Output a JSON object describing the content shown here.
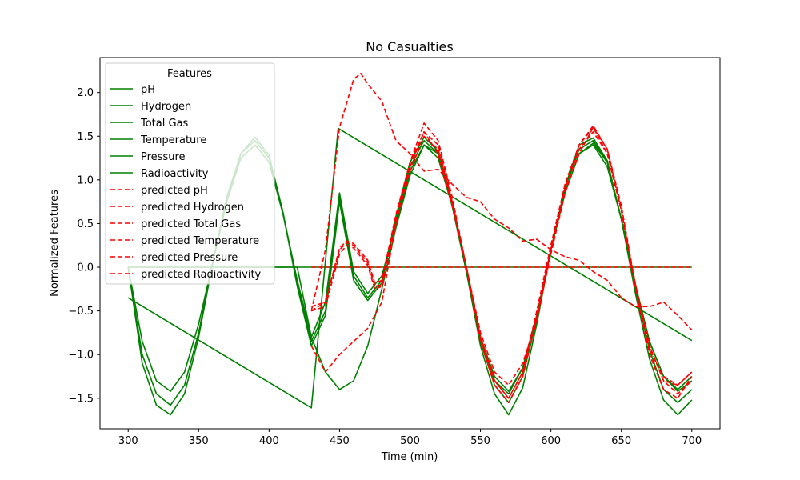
{
  "chart_data": {
    "type": "line",
    "title": "No Casualties",
    "xlabel": "Time (min)",
    "ylabel": "Normalized Features",
    "xlim": [
      280,
      720
    ],
    "ylim": [
      -1.85,
      2.4
    ],
    "xticks": [
      300,
      350,
      400,
      450,
      500,
      550,
      600,
      650,
      700
    ],
    "yticks": [
      -1.5,
      -1.0,
      -0.5,
      0.0,
      0.5,
      1.0,
      1.5,
      2.0
    ],
    "ytick_labels": [
      "−1.5",
      "−1.0",
      "−0.5",
      "0.0",
      "0.5",
      "1.0",
      "1.5",
      "2.0"
    ],
    "grid": false,
    "legend": {
      "title": "Features",
      "placement": "upper-left",
      "entries": [
        {
          "name": "pH",
          "color": "#008000",
          "style": "solid"
        },
        {
          "name": "Hydrogen",
          "color": "#008000",
          "style": "solid"
        },
        {
          "name": "Total Gas",
          "color": "#008000",
          "style": "solid"
        },
        {
          "name": "Temperature",
          "color": "#008000",
          "style": "solid"
        },
        {
          "name": "Pressure",
          "color": "#008000",
          "style": "solid"
        },
        {
          "name": "Radioactivity",
          "color": "#008000",
          "style": "solid"
        },
        {
          "name": "predicted pH",
          "color": "#ff0000",
          "style": "dashed"
        },
        {
          "name": "predicted Hydrogen",
          "color": "#ff0000",
          "style": "dashed"
        },
        {
          "name": "predicted Total Gas",
          "color": "#ff0000",
          "style": "dashed"
        },
        {
          "name": "predicted Temperature",
          "color": "#ff0000",
          "style": "dashed"
        },
        {
          "name": "predicted Pressure",
          "color": "#ff0000",
          "style": "dashed"
        },
        {
          "name": "predicted Radioactivity",
          "color": "#ff0000",
          "style": "dashed"
        }
      ]
    },
    "series": [
      {
        "name": "pH",
        "color": "#008000",
        "style": "solid",
        "x": [
          300,
          310,
          320,
          330,
          340,
          350,
          360,
          370,
          380,
          390,
          400,
          410,
          420,
          430,
          440,
          450,
          460,
          470,
          480,
          490,
          500,
          510,
          520,
          530,
          540,
          550,
          560,
          570,
          580,
          590,
          600,
          610,
          620,
          630,
          640,
          650,
          660,
          670,
          680,
          690,
          700
        ],
        "y": [
          0.0,
          -0.85,
          -1.3,
          -1.42,
          -1.2,
          -0.65,
          0.05,
          0.75,
          1.25,
          1.4,
          1.2,
          0.6,
          -0.15,
          -0.8,
          -0.4,
          0.85,
          -0.05,
          -0.3,
          -0.1,
          0.5,
          1.1,
          1.4,
          1.25,
          0.7,
          -0.05,
          -0.8,
          -1.25,
          -1.42,
          -1.15,
          -0.55,
          0.2,
          0.85,
          1.3,
          1.4,
          1.15,
          0.55,
          -0.2,
          -0.85,
          -1.25,
          -1.4,
          -1.25
        ]
      },
      {
        "name": "Hydrogen",
        "color": "#008000",
        "style": "solid",
        "x": [
          300,
          310,
          320,
          330,
          340,
          350,
          360,
          370,
          380,
          390,
          400,
          410,
          420,
          430,
          440,
          450,
          460,
          470,
          480,
          490,
          500,
          510,
          520,
          530,
          540,
          550,
          560,
          570,
          580,
          590,
          600,
          610,
          620,
          630,
          640,
          650,
          660,
          670,
          680,
          690,
          700
        ],
        "y": [
          0.0,
          -1.0,
          -1.45,
          -1.58,
          -1.35,
          -0.75,
          0.05,
          0.8,
          1.3,
          1.45,
          1.25,
          0.6,
          -0.2,
          -0.85,
          -0.5,
          0.8,
          -0.1,
          -0.35,
          -0.15,
          0.55,
          1.15,
          1.45,
          1.3,
          0.7,
          -0.05,
          -0.85,
          -1.35,
          -1.55,
          -1.25,
          -0.6,
          0.2,
          0.9,
          1.35,
          1.45,
          1.2,
          0.55,
          -0.25,
          -0.95,
          -1.4,
          -1.55,
          -1.4
        ]
      },
      {
        "name": "Total Gas",
        "color": "#008000",
        "style": "solid",
        "x": [
          300,
          310,
          320,
          330,
          340,
          350,
          360,
          370,
          380,
          390,
          400,
          410,
          420,
          430,
          440,
          450,
          460,
          470,
          480,
          490,
          500,
          510,
          520,
          530,
          540,
          550,
          560,
          570,
          580,
          590,
          600,
          610,
          620,
          630,
          640,
          650,
          660,
          670,
          680,
          690,
          700
        ],
        "y": [
          0.0,
          -1.1,
          -1.58,
          -1.69,
          -1.45,
          -0.8,
          0.05,
          0.8,
          1.3,
          1.49,
          1.28,
          0.62,
          -0.22,
          -0.9,
          -0.55,
          0.75,
          -0.15,
          -0.38,
          -0.18,
          0.58,
          1.2,
          1.49,
          1.33,
          0.72,
          -0.05,
          -0.9,
          -1.45,
          -1.69,
          -1.38,
          -0.65,
          0.2,
          0.92,
          1.4,
          1.48,
          1.22,
          0.55,
          -0.3,
          -1.05,
          -1.52,
          -1.69,
          -1.52
        ]
      },
      {
        "name": "Temperature",
        "color": "#008000",
        "style": "solid",
        "x": [
          300,
          430,
          449,
          700
        ],
        "y": [
          -0.35,
          -1.61,
          1.59,
          -0.84
        ]
      },
      {
        "name": "Pressure",
        "color": "#008000",
        "style": "solid",
        "x": [
          300,
          420,
          430,
          440,
          450,
          460,
          470,
          480,
          490,
          500,
          510,
          520,
          530,
          540,
          550,
          560,
          570,
          580,
          590,
          600,
          610,
          620,
          630,
          640,
          650,
          660,
          670,
          680,
          690,
          700
        ],
        "y": [
          0.0,
          0.0,
          -0.8,
          -1.2,
          -1.4,
          -1.3,
          -0.9,
          -0.25,
          0.45,
          1.05,
          1.4,
          1.3,
          0.7,
          0.0,
          -0.8,
          -1.3,
          -1.45,
          -1.15,
          -0.55,
          0.2,
          0.85,
          1.3,
          1.42,
          1.2,
          0.55,
          -0.2,
          -0.85,
          -1.25,
          -1.42,
          -1.3
        ]
      },
      {
        "name": "Radioactivity",
        "color": "#008000",
        "style": "solid",
        "x": [
          300,
          700
        ],
        "y": [
          0.0,
          0.0
        ]
      },
      {
        "name": "predicted pH",
        "color": "#ff0000",
        "style": "dashed",
        "x": [
          430,
          440,
          450,
          455,
          460,
          470,
          475,
          480,
          490,
          500,
          510,
          520,
          530,
          540,
          550,
          560,
          570,
          580,
          590,
          600,
          610,
          620,
          630,
          640,
          650,
          660,
          670,
          680,
          690,
          700
        ],
        "y": [
          -0.5,
          -0.4,
          0.2,
          0.28,
          0.25,
          0.05,
          -0.22,
          -0.2,
          0.5,
          1.1,
          1.5,
          1.35,
          0.75,
          0.0,
          -0.8,
          -1.3,
          -1.5,
          -1.2,
          -0.55,
          0.2,
          0.9,
          1.35,
          1.55,
          1.3,
          0.65,
          -0.2,
          -0.9,
          -1.3,
          -1.45,
          -1.3
        ]
      },
      {
        "name": "predicted Hydrogen",
        "color": "#ff0000",
        "style": "dashed",
        "x": [
          430,
          440,
          450,
          455,
          460,
          470,
          475,
          480,
          490,
          500,
          510,
          520,
          530,
          540,
          550,
          560,
          570,
          580,
          590,
          600,
          610,
          620,
          630,
          640,
          650,
          660,
          670,
          680,
          690,
          700
        ],
        "y": [
          -0.5,
          -0.45,
          0.15,
          0.25,
          0.22,
          0.02,
          -0.25,
          -0.22,
          0.55,
          1.15,
          1.55,
          1.4,
          0.75,
          0.0,
          -0.85,
          -1.35,
          -1.55,
          -1.25,
          -0.6,
          0.2,
          0.95,
          1.4,
          1.6,
          1.35,
          0.65,
          -0.25,
          -1.0,
          -1.4,
          -1.5,
          -1.25
        ]
      },
      {
        "name": "predicted Total Gas",
        "color": "#ff0000",
        "style": "dashed",
        "x": [
          430,
          440,
          450,
          455,
          460,
          470,
          475,
          480,
          490,
          500,
          510,
          520,
          530,
          540,
          550,
          560,
          570,
          580,
          590,
          600,
          610,
          620,
          630,
          640,
          650,
          660,
          670,
          680,
          690,
          700
        ],
        "y": [
          -0.45,
          -0.4,
          0.22,
          0.3,
          0.27,
          0.08,
          -0.18,
          -0.15,
          0.6,
          1.2,
          1.65,
          1.45,
          0.8,
          0.0,
          -0.8,
          -1.3,
          -1.5,
          -1.2,
          -0.5,
          0.25,
          0.95,
          1.4,
          1.62,
          1.35,
          0.7,
          -0.2,
          -0.9,
          -1.3,
          -1.35,
          -1.2
        ]
      },
      {
        "name": "predicted Temperature",
        "color": "#ff0000",
        "style": "dashed",
        "x": [
          430,
          440,
          450,
          460,
          465,
          470,
          480,
          490,
          500,
          510,
          520,
          530,
          540,
          550,
          560,
          570,
          580,
          590,
          600,
          610,
          620,
          630,
          640,
          650,
          660,
          670,
          680,
          690,
          700
        ],
        "y": [
          -0.5,
          0.2,
          1.6,
          2.15,
          2.22,
          2.1,
          1.9,
          1.45,
          1.3,
          1.1,
          1.12,
          0.95,
          0.8,
          0.75,
          0.55,
          0.45,
          0.3,
          0.32,
          0.2,
          0.12,
          0.08,
          -0.05,
          -0.15,
          -0.35,
          -0.45,
          -0.45,
          -0.4,
          -0.55,
          -0.72
        ]
      },
      {
        "name": "predicted Pressure",
        "color": "#ff0000",
        "style": "dashed",
        "x": [
          430,
          440,
          450,
          460,
          470,
          480,
          490,
          500,
          510,
          520,
          530,
          540,
          550,
          560,
          570,
          580,
          590,
          600,
          610,
          620,
          630,
          640,
          650,
          660,
          670,
          680,
          690,
          700
        ],
        "y": [
          -0.9,
          -1.2,
          -1.0,
          -0.85,
          -0.7,
          -0.4,
          0.5,
          1.2,
          1.55,
          1.3,
          0.7,
          0.0,
          -0.75,
          -1.2,
          -1.35,
          -1.1,
          -0.6,
          0.15,
          0.85,
          1.3,
          1.6,
          1.3,
          0.65,
          -0.2,
          -0.95,
          -1.25,
          -1.35,
          -1.2
        ]
      },
      {
        "name": "predicted Radioactivity",
        "color": "#ff0000",
        "style": "dashed",
        "x": [
          430,
          700
        ],
        "y": [
          0.0,
          0.0
        ]
      }
    ]
  }
}
